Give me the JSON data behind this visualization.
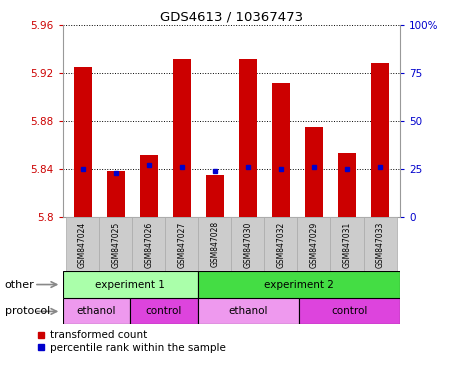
{
  "title": "GDS4613 / 10367473",
  "samples": [
    "GSM847024",
    "GSM847025",
    "GSM847026",
    "GSM847027",
    "GSM847028",
    "GSM847030",
    "GSM847032",
    "GSM847029",
    "GSM847031",
    "GSM847033"
  ],
  "transformed_count": [
    5.925,
    5.838,
    5.852,
    5.932,
    5.835,
    5.932,
    5.912,
    5.875,
    5.853,
    5.928
  ],
  "percentile_rank": [
    25,
    23,
    27,
    26,
    24,
    26,
    25,
    26,
    25,
    26
  ],
  "ymin": 5.8,
  "ymax": 5.96,
  "yticks": [
    5.8,
    5.84,
    5.88,
    5.92,
    5.96
  ],
  "right_yticks": [
    0,
    25,
    50,
    75,
    100
  ],
  "right_ylabels": [
    "0",
    "25",
    "50",
    "75",
    "100%"
  ],
  "bar_color": "#cc0000",
  "dot_color": "#0000cc",
  "bar_width": 0.55,
  "other_row": [
    {
      "label": "experiment 1",
      "start": 0,
      "end": 4,
      "color": "#aaffaa"
    },
    {
      "label": "experiment 2",
      "start": 4,
      "end": 10,
      "color": "#44dd44"
    }
  ],
  "protocol_row": [
    {
      "label": "ethanol",
      "start": 0,
      "end": 2,
      "color": "#ee99ee"
    },
    {
      "label": "control",
      "start": 2,
      "end": 4,
      "color": "#dd44dd"
    },
    {
      "label": "ethanol",
      "start": 4,
      "end": 7,
      "color": "#ee99ee"
    },
    {
      "label": "control",
      "start": 7,
      "end": 10,
      "color": "#dd44dd"
    }
  ],
  "legend_items": [
    {
      "label": "transformed count",
      "color": "#cc0000"
    },
    {
      "label": "percentile rank within the sample",
      "color": "#0000cc"
    }
  ],
  "left_axis_color": "#cc0000",
  "right_axis_color": "#0000cc",
  "sample_row_color": "#cccccc",
  "other_label": "other",
  "protocol_label": "protocol"
}
